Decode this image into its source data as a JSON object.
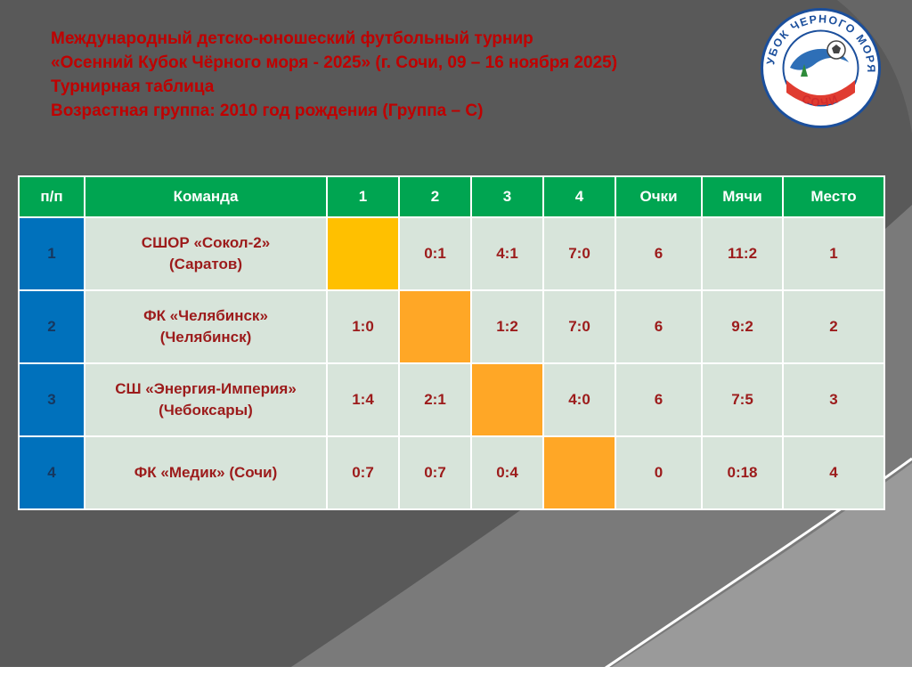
{
  "title": {
    "lines": [
      "Международный детско-юношеский футбольный турнир",
      "«Осенний Кубок Чёрного моря - 2025» (г. Сочи, 09 – 16 ноября 2025)",
      "Турнирная таблица",
      "Возрастная группа: 2010 год рождения (Группа – С)"
    ]
  },
  "logo": {
    "arc_top": "КУБОК ЧЕРНОГО МОРЯ",
    "arc_bottom": "СОЧИ"
  },
  "table": {
    "headers": [
      "п/п",
      "Команда",
      "1",
      "2",
      "3",
      "4",
      "Очки",
      "Мячи",
      "Место"
    ],
    "rows": [
      {
        "num": "1",
        "team_lines": [
          "СШОР «Сокол-2»",
          "(Саратов)"
        ],
        "scores": [
          "",
          "0:1",
          "4:1",
          "7:0"
        ],
        "self_index": 0,
        "self_color": "#FFC000",
        "points": "6",
        "goals": "11:2",
        "place": "1"
      },
      {
        "num": "2",
        "team_lines": [
          "ФК «Челябинск»",
          "(Челябинск)"
        ],
        "scores": [
          "1:0",
          "",
          "1:2",
          "7:0"
        ],
        "self_index": 1,
        "self_color": "#FFA726",
        "points": "6",
        "goals": "9:2",
        "place": "2"
      },
      {
        "num": "3",
        "team_lines": [
          "СШ «Энергия-Империя»",
          "(Чебоксары)"
        ],
        "scores": [
          "1:4",
          "2:1",
          "",
          "4:0"
        ],
        "self_index": 2,
        "self_color": "#FFA726",
        "points": "6",
        "goals": "7:5",
        "place": "3"
      },
      {
        "num": "4",
        "team_lines": [
          "ФК «Медик» (Сочи)"
        ],
        "scores": [
          "0:7",
          "0:7",
          "0:4",
          ""
        ],
        "self_index": 3,
        "self_color": "#FFA726",
        "points": "0",
        "goals": "0:18",
        "place": "4"
      }
    ]
  },
  "colors": {
    "slide_bg": "#595959",
    "header_bg": "#00A551",
    "num_col_bg": "#0071BC",
    "cell_bg": "#D7E4DA",
    "cell_text": "#9C1B1B",
    "title_text": "#C00000",
    "self_cell_gold": "#FFC000",
    "self_cell_orange": "#FFA726"
  }
}
